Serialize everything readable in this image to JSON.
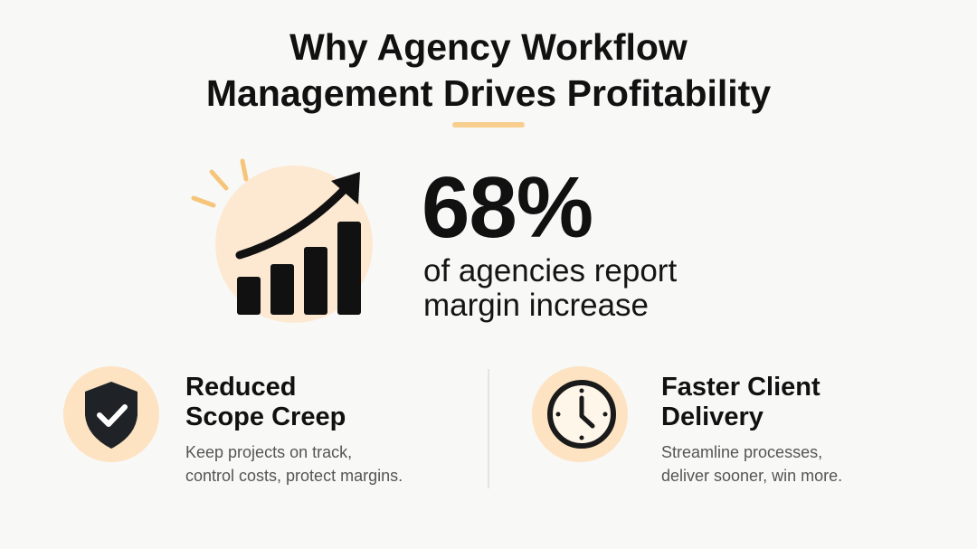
{
  "header": {
    "title_lines": [
      "Why Agency Workflow",
      "Management Drives Profitability"
    ]
  },
  "stat": {
    "value": "68%",
    "caption_lines": [
      "of agencies report",
      "margin increase"
    ]
  },
  "features": [
    {
      "title_lines": [
        "Reduced",
        "Scope Creep"
      ],
      "description_lines": [
        "Keep projects on track,",
        "control costs, protect margins."
      ]
    },
    {
      "title_lines": [
        "Faster Client",
        "Delivery"
      ],
      "description_lines": [
        "Streamline processes,",
        "deliver sooner, win more."
      ]
    }
  ]
}
